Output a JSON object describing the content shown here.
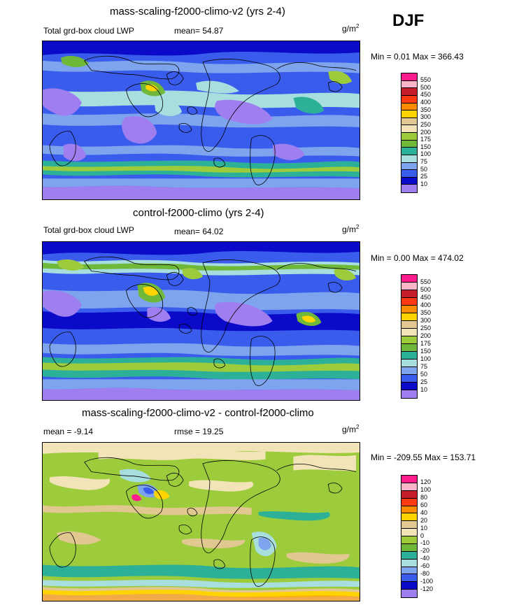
{
  "season": "DJF",
  "panels": [
    {
      "id": "p1",
      "title": "mass-scaling-f2000-climo-v2 (yrs 2-4)",
      "variable": "Total grd-box cloud LWP",
      "stat_label": "mean=",
      "stat_value": "54.87",
      "units": "g/m",
      "units_exp": "2",
      "minmax": "Min =   0.01 Max = 366.43",
      "colorbar": {
        "labels": [
          "550",
          "500",
          "450",
          "400",
          "350",
          "300",
          "250",
          "200",
          "175",
          "150",
          "100",
          "75",
          "50",
          "25",
          "10"
        ],
        "colors": [
          "#ff1d8e",
          "#ffb6c8",
          "#c81e2a",
          "#ff3a12",
          "#ff8c00",
          "#ffd400",
          "#e0c890",
          "#f2e4b8",
          "#9ccc3c",
          "#70b83a",
          "#2cb098",
          "#a8dede",
          "#7ea4ee",
          "#3a5cec",
          "#0a0ac8",
          "#9f7ff0"
        ]
      }
    },
    {
      "id": "p2",
      "title": "control-f2000-climo (yrs 2-4)",
      "variable": "Total grd-box cloud LWP",
      "stat_label": "mean=",
      "stat_value": "64.02",
      "units": "g/m",
      "units_exp": "2",
      "minmax": "Min =   0.00 Max = 474.02",
      "colorbar": {
        "labels": [
          "550",
          "500",
          "450",
          "400",
          "350",
          "300",
          "250",
          "200",
          "175",
          "150",
          "100",
          "75",
          "50",
          "25",
          "10"
        ],
        "colors": [
          "#ff1d8e",
          "#ffb6c8",
          "#c81e2a",
          "#ff3a12",
          "#ff8c00",
          "#ffd400",
          "#e0c890",
          "#f2e4b8",
          "#9ccc3c",
          "#70b83a",
          "#2cb098",
          "#a8dede",
          "#7ea4ee",
          "#3a5cec",
          "#0a0ac8",
          "#9f7ff0"
        ]
      }
    },
    {
      "id": "p3",
      "title": "mass-scaling-f2000-climo-v2 - control-f2000-climo",
      "variable": "mean =  -9.14",
      "stat_label": "rmse =",
      "stat_value": "19.25",
      "units": "g/m",
      "units_exp": "2",
      "minmax": "Min = -209.55 Max = 153.71",
      "colorbar": {
        "labels": [
          "120",
          "100",
          "80",
          "60",
          "40",
          "20",
          "10",
          "0",
          "-10",
          "-20",
          "-40",
          "-60",
          "-80",
          "-100",
          "-120"
        ],
        "colors": [
          "#ff1d8e",
          "#ffb6c8",
          "#c81e2a",
          "#ff3a12",
          "#ff8c00",
          "#ffd400",
          "#e0c890",
          "#f2e4b8",
          "#9ccc3c",
          "#70b83a",
          "#2cb098",
          "#a8dede",
          "#7ea4ee",
          "#3a5cec",
          "#0a0ac8",
          "#9f7ff0"
        ]
      }
    }
  ]
}
